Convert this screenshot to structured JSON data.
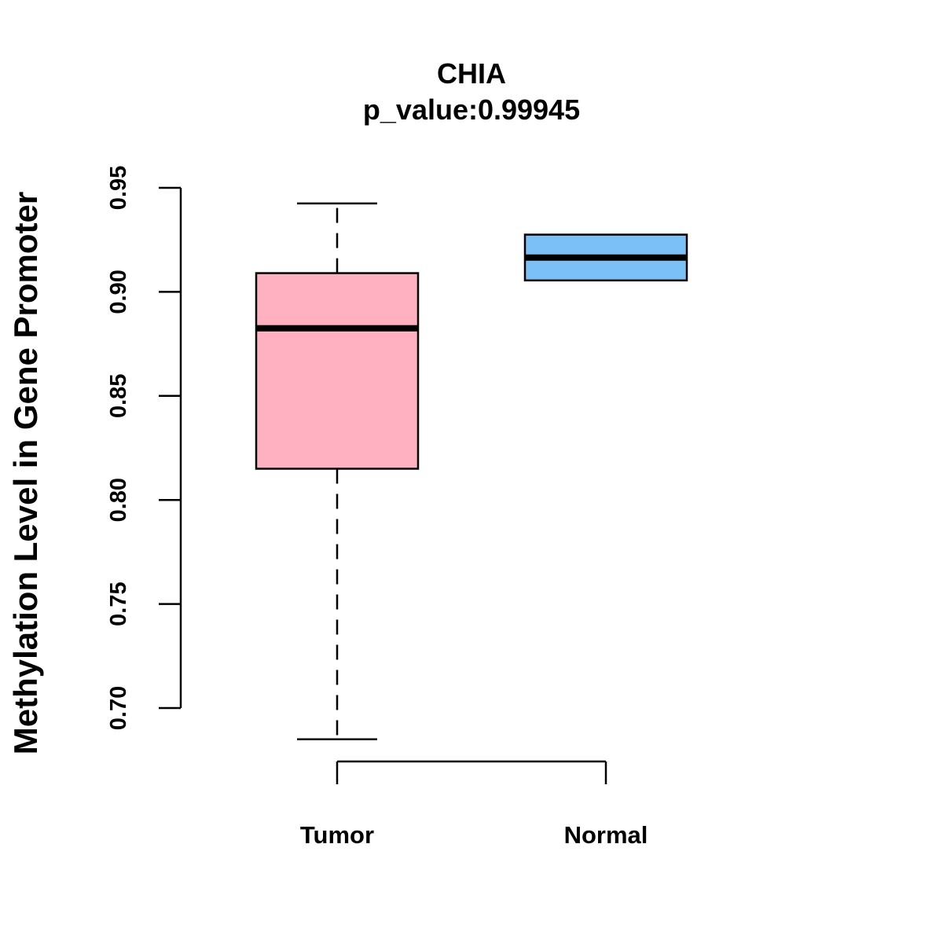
{
  "chart_data": {
    "type": "boxplot",
    "title": "CHIA",
    "subtitle": "p_value:0.99945",
    "xlabel": "",
    "ylabel": "Methylation Level in Gene Promoter",
    "ylim": [
      0.7,
      0.95
    ],
    "yticks": [
      "0.70",
      "0.75",
      "0.80",
      "0.85",
      "0.90",
      "0.95"
    ],
    "grid": false,
    "categories": [
      "Tumor",
      "Normal"
    ],
    "boxes": [
      {
        "name": "Tumor",
        "whisker_low": 0.685,
        "q1": 0.815,
        "median": 0.8825,
        "q3": 0.909,
        "whisker_high": 0.9425,
        "color": "#FFB0C1"
      },
      {
        "name": "Normal",
        "whisker_low": 0.9055,
        "q1": 0.9055,
        "median": 0.9165,
        "q3": 0.9275,
        "whisker_high": 0.9275,
        "color": "#7BC1F7"
      }
    ]
  }
}
